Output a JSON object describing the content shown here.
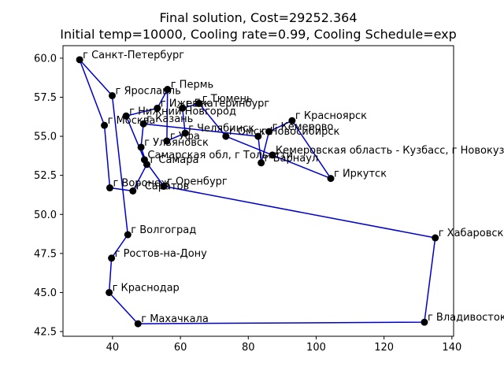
{
  "chart_data": {
    "type": "scatter",
    "title": "Final solution, Cost=29252.364",
    "subtitle": "Initial temp=10000, Cooling rate=0.99, Cooling Schedule=exp",
    "xlabel": "",
    "ylabel": "",
    "xlim": [
      25.4,
      140.5
    ],
    "ylim": [
      42.2,
      60.8
    ],
    "xticks": [
      40,
      60,
      80,
      100,
      120,
      140
    ],
    "yticks": [
      42.5,
      45.0,
      47.5,
      50.0,
      52.5,
      55.0,
      57.5,
      60.0
    ],
    "grid": false,
    "route_color": "#0000cc",
    "point_color": "#000000",
    "cities": [
      {
        "name": "г Санкт-Петербург",
        "x": 30.3,
        "y": 59.9
      },
      {
        "name": "г Пермь",
        "x": 56.2,
        "y": 58.0
      },
      {
        "name": "г Ярославль",
        "x": 39.9,
        "y": 57.6
      },
      {
        "name": "г Тюмень",
        "x": 65.5,
        "y": 57.1
      },
      {
        "name": "г Ижевск",
        "x": 53.2,
        "y": 56.8
      },
      {
        "name": "г Екатеринбург",
        "x": 60.6,
        "y": 56.8
      },
      {
        "name": "г Нижний Новгород",
        "x": 44.0,
        "y": 56.3
      },
      {
        "name": "г Красноярск",
        "x": 92.9,
        "y": 56.0
      },
      {
        "name": "г Казань",
        "x": 49.1,
        "y": 55.8
      },
      {
        "name": "г Москва",
        "x": 37.6,
        "y": 55.7
      },
      {
        "name": "г Кемерово",
        "x": 86.1,
        "y": 55.3
      },
      {
        "name": "г Челябинск",
        "x": 61.4,
        "y": 55.2
      },
      {
        "name": "г Омск",
        "x": 73.4,
        "y": 55.0
      },
      {
        "name": "г Новосибирск",
        "x": 82.9,
        "y": 55.0
      },
      {
        "name": "г Уфа",
        "x": 56.0,
        "y": 54.7
      },
      {
        "name": "г Ульяновск",
        "x": 48.4,
        "y": 54.3
      },
      {
        "name": "Кемеровская область - Кузбасс, г Новокузнецк",
        "x": 87.1,
        "y": 53.8
      },
      {
        "name": "Самарская обл, г Тольятти",
        "x": 49.4,
        "y": 53.5
      },
      {
        "name": "г Барнаул",
        "x": 83.8,
        "y": 53.3
      },
      {
        "name": "г Самара",
        "x": 50.1,
        "y": 53.2
      },
      {
        "name": "г Иркутск",
        "x": 104.3,
        "y": 52.3
      },
      {
        "name": "г Оренбург",
        "x": 55.1,
        "y": 51.8
      },
      {
        "name": "г Воронеж",
        "x": 39.2,
        "y": 51.7
      },
      {
        "name": "г Саратов",
        "x": 46.0,
        "y": 51.5
      },
      {
        "name": "г Волгоград",
        "x": 44.5,
        "y": 48.7
      },
      {
        "name": "г Хабаровск",
        "x": 135.1,
        "y": 48.5
      },
      {
        "name": "г Ростов-на-Дону",
        "x": 39.7,
        "y": 47.2
      },
      {
        "name": "г Краснодар",
        "x": 39.0,
        "y": 45.0
      },
      {
        "name": "г Махачкала",
        "x": 47.5,
        "y": 43.0
      },
      {
        "name": "г Владивосток",
        "x": 131.9,
        "y": 43.1
      }
    ],
    "route": [
      "г Санкт-Петербург",
      "г Москва",
      "г Воронеж",
      "г Саратов",
      "г Самара",
      "г Ульяновск",
      "г Казань",
      "г Новосибирск",
      "г Барнаул",
      "г Кемерово",
      "г Красноярск",
      "г Иркутск",
      "Кемеровская область - Кузбасс, г Новокузнецк",
      "г Омск",
      "г Тюмень",
      "г Екатеринбург",
      "г Челябинск",
      "г Уфа",
      "г Пермь",
      "г Ижевск",
      "г Нижний Новгород",
      "Самарская обл, г Тольятти",
      "г Оренбург",
      "г Хабаровск",
      "г Владивосток",
      "г Махачкала",
      "г Краснодар",
      "г Ростов-на-Дону",
      "г Волгоград",
      "г Ярославль",
      "г Санкт-Петербург"
    ]
  }
}
